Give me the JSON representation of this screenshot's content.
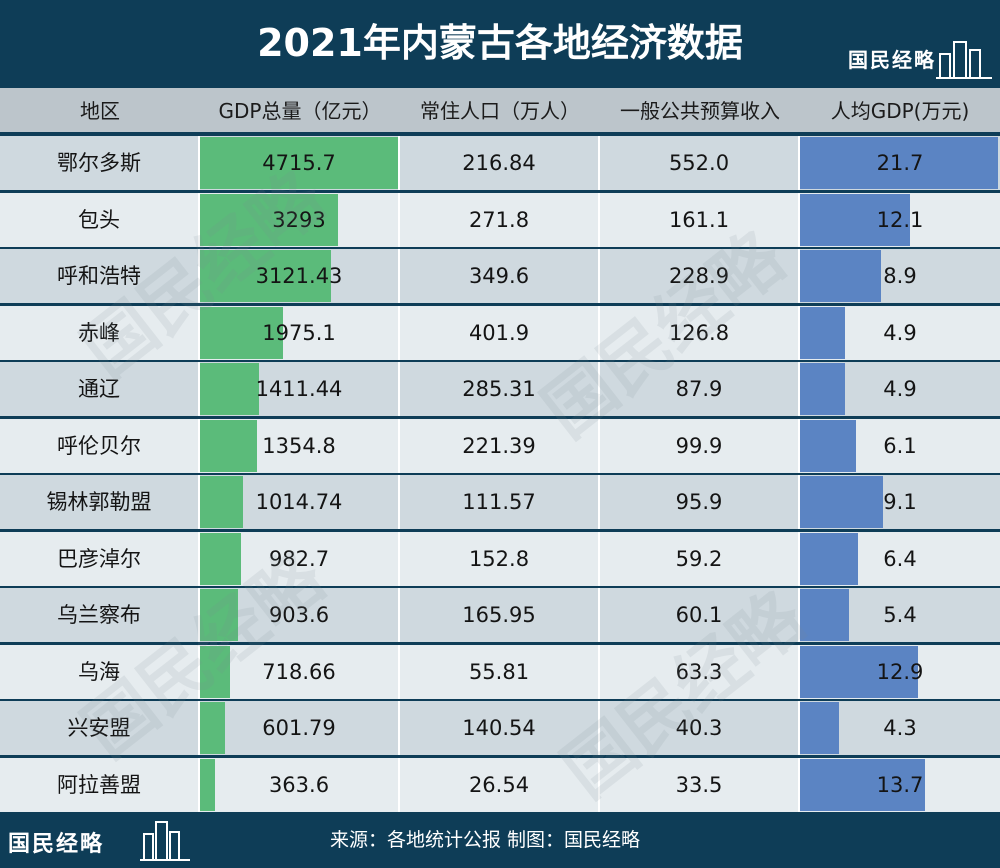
{
  "title": "2021年内蒙古各地经济数据",
  "brand": "国民经略",
  "footer": {
    "brand": "国民经略",
    "source": "来源：各地统计公报 制图：国民经略"
  },
  "headers": [
    "地区",
    "GDP总量（亿元）",
    "常住人口（万人）",
    "一般公共预算收入",
    "人均GDP(万元)"
  ],
  "colors": {
    "header_bg": "#0e3d57",
    "gdp_bar": "#5bbb7a",
    "per_capita_bar": "#5b84c3",
    "row_odd": "#cfd9df",
    "row_even": "#e6ecef"
  },
  "chart_data": {
    "type": "table",
    "title": "2021年内蒙古各地经济数据",
    "columns": [
      "地区",
      "GDP总量（亿元）",
      "常住人口（万人）",
      "一般公共预算收入",
      "人均GDP(万元)"
    ],
    "rows": [
      {
        "region": "鄂尔多斯",
        "gdp": "4715.7",
        "population": "216.84",
        "revenue": "552.0",
        "per_capita": "21.7"
      },
      {
        "region": "包头",
        "gdp": "3293",
        "population": "271.8",
        "revenue": "161.1",
        "per_capita": "12.1"
      },
      {
        "region": "呼和浩特",
        "gdp": "3121.43",
        "population": "349.6",
        "revenue": "228.9",
        "per_capita": "8.9"
      },
      {
        "region": "赤峰",
        "gdp": "1975.1",
        "population": "401.9",
        "revenue": "126.8",
        "per_capita": "4.9"
      },
      {
        "region": "通辽",
        "gdp": "1411.44",
        "population": "285.31",
        "revenue": "87.9",
        "per_capita": "4.9"
      },
      {
        "region": "呼伦贝尔",
        "gdp": "1354.8",
        "population": "221.39",
        "revenue": "99.9",
        "per_capita": "6.1"
      },
      {
        "region": "锡林郭勒盟",
        "gdp": "1014.74",
        "population": "111.57",
        "revenue": "95.9",
        "per_capita": "9.1"
      },
      {
        "region": "巴彦淖尔",
        "gdp": "982.7",
        "population": "152.8",
        "revenue": "59.2",
        "per_capita": "6.4"
      },
      {
        "region": "乌兰察布",
        "gdp": "903.6",
        "population": "165.95",
        "revenue": "60.1",
        "per_capita": "5.4"
      },
      {
        "region": "乌海",
        "gdp": "718.66",
        "population": "55.81",
        "revenue": "63.3",
        "per_capita": "12.9"
      },
      {
        "region": "兴安盟",
        "gdp": "601.79",
        "population": "140.54",
        "revenue": "40.3",
        "per_capita": "4.3"
      },
      {
        "region": "阿拉善盟",
        "gdp": "363.6",
        "population": "26.54",
        "revenue": "33.5",
        "per_capita": "13.7"
      }
    ],
    "gdp_bar_max": 4715.7,
    "per_capita_bar_max": 21.7
  }
}
